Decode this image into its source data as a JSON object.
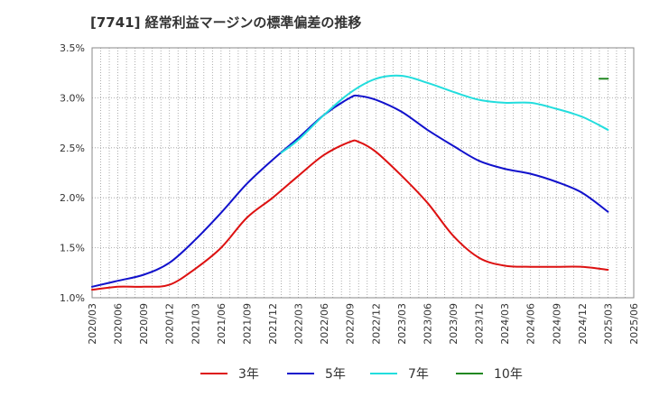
{
  "chart_data": {
    "type": "line",
    "title": "[7741]  経常利益マージンの標準偏差の推移",
    "xlabel": "",
    "ylabel": "",
    "ylim": [
      1.0,
      3.5
    ],
    "yticks": [
      "1.0%",
      "1.5%",
      "2.0%",
      "2.5%",
      "3.0%",
      "3.5%"
    ],
    "ytick_values": [
      1.0,
      1.5,
      2.0,
      2.5,
      3.0,
      3.5
    ],
    "xticks": [
      "2020/03",
      "2020/06",
      "2020/09",
      "2020/12",
      "2021/03",
      "2021/06",
      "2021/09",
      "2021/12",
      "2022/03",
      "2022/06",
      "2022/09",
      "2022/12",
      "2023/03",
      "2023/06",
      "2023/09",
      "2023/12",
      "2024/03",
      "2024/06",
      "2024/09",
      "2024/12",
      "2025/03",
      "2025/06"
    ],
    "grid": true,
    "legend_position": "bottom",
    "series": [
      {
        "name": "3年",
        "color": "#dd1111",
        "x": [
          "2020/03",
          "2020/06",
          "2020/09",
          "2020/12",
          "2021/03",
          "2021/06",
          "2021/09",
          "2021/12",
          "2022/03",
          "2022/06",
          "2022/09",
          "2022/10",
          "2022/12",
          "2023/03",
          "2023/06",
          "2023/09",
          "2023/12",
          "2024/03",
          "2024/06",
          "2024/09",
          "2024/12",
          "2025/03"
        ],
        "values": [
          1.08,
          1.11,
          1.11,
          1.13,
          1.29,
          1.5,
          1.8,
          2.0,
          2.22,
          2.43,
          2.56,
          2.56,
          2.46,
          2.22,
          1.95,
          1.62,
          1.4,
          1.32,
          1.31,
          1.31,
          1.31,
          1.28
        ]
      },
      {
        "name": "5年",
        "color": "#1111cc",
        "x": [
          "2020/03",
          "2020/06",
          "2020/09",
          "2020/12",
          "2021/03",
          "2021/06",
          "2021/09",
          "2021/12",
          "2022/03",
          "2022/06",
          "2022/09",
          "2022/10",
          "2022/12",
          "2023/03",
          "2023/06",
          "2023/09",
          "2023/12",
          "2024/03",
          "2024/06",
          "2024/09",
          "2024/12",
          "2025/03"
        ],
        "values": [
          1.11,
          1.17,
          1.23,
          1.35,
          1.58,
          1.85,
          2.14,
          2.38,
          2.6,
          2.83,
          3.0,
          3.02,
          2.98,
          2.86,
          2.68,
          2.52,
          2.37,
          2.29,
          2.24,
          2.16,
          2.05,
          1.86
        ]
      },
      {
        "name": "7年",
        "color": "#22dddd",
        "x": [
          "2022/01",
          "2022/03",
          "2022/06",
          "2022/09",
          "2022/12",
          "2023/03",
          "2023/06",
          "2023/09",
          "2023/12",
          "2024/03",
          "2024/06",
          "2024/09",
          "2024/12",
          "2025/03"
        ],
        "values": [
          2.45,
          2.58,
          2.83,
          3.05,
          3.19,
          3.22,
          3.15,
          3.06,
          2.98,
          2.95,
          2.95,
          2.89,
          2.81,
          2.68
        ]
      },
      {
        "name": "10年",
        "color": "#228822",
        "x": [
          "2025/02",
          "2025/03"
        ],
        "values": [
          3.19,
          3.19
        ]
      }
    ]
  }
}
